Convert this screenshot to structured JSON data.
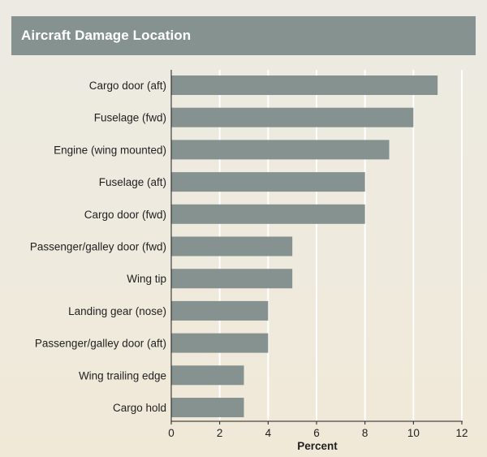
{
  "chart_data": {
    "type": "bar",
    "orientation": "horizontal",
    "title": "Aircraft Damage Location",
    "xlabel": "Percent",
    "ylabel": "",
    "categories": [
      "Cargo door (aft)",
      "Fuselage (fwd)",
      "Engine (wing mounted)",
      "Fuselage (aft)",
      "Cargo door (fwd)",
      "Passenger/galley door (fwd)",
      "Wing tip",
      "Landing gear (nose)",
      "Passenger/galley door (aft)",
      "Wing trailing edge",
      "Cargo hold"
    ],
    "values": [
      11,
      10,
      9,
      8,
      8,
      5,
      5,
      4,
      4,
      3,
      3
    ],
    "xlim": [
      0,
      12
    ],
    "xticks": [
      "0",
      "2",
      "4",
      "6",
      "8",
      "10",
      "12"
    ],
    "grid": true,
    "colors": {
      "bar": "#869290",
      "title_bar": "#869290",
      "title_text": "#ffffff",
      "grid": "#ffffff",
      "axis": "#1f1f1f"
    }
  }
}
